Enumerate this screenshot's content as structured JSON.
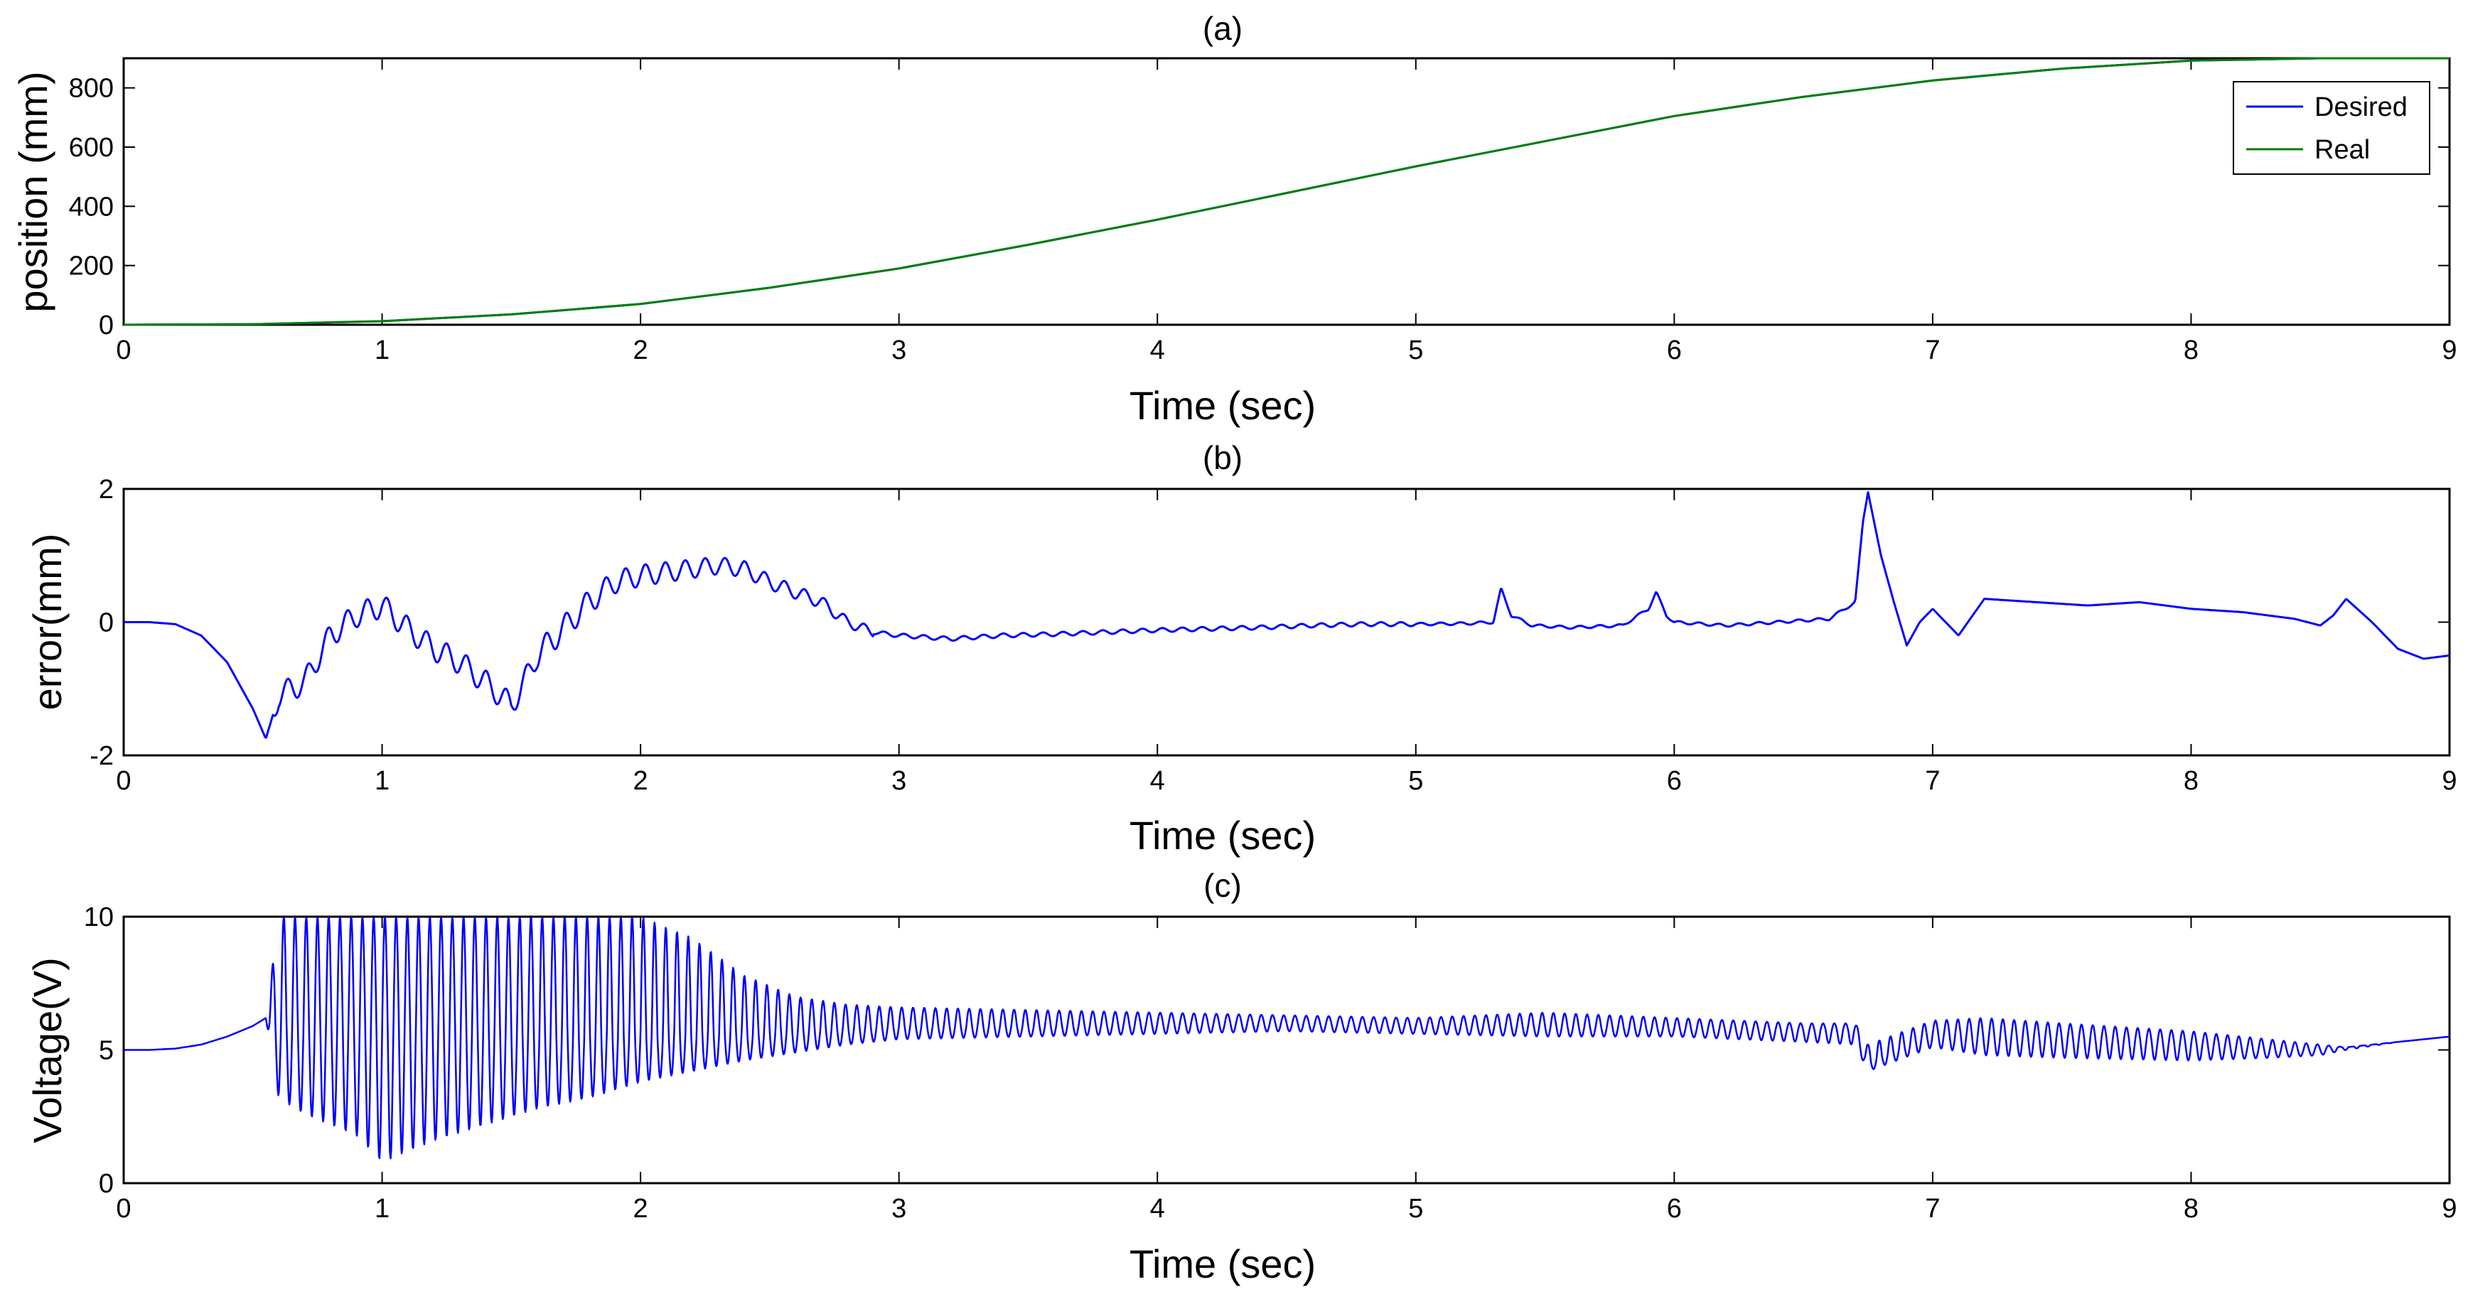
{
  "figure": {
    "line_colors": {
      "desired": "#0000ff",
      "real": "#008000"
    },
    "axis_color": "#000000",
    "background": "#ffffff"
  },
  "chart_data": [
    {
      "panel": "a",
      "type": "line",
      "title": "(a)",
      "xlabel": "Time (sec)",
      "ylabel": "position (mm)",
      "xlim": [
        0,
        9
      ],
      "ylim": [
        0,
        900
      ],
      "xticks": [
        0,
        1,
        2,
        3,
        4,
        5,
        6,
        7,
        8,
        9
      ],
      "yticks": [
        0,
        200,
        400,
        600,
        800
      ],
      "grid": false,
      "legend": {
        "placement": "top-right",
        "entries": [
          "Desired",
          "Real"
        ]
      },
      "series": [
        {
          "name": "Desired",
          "color": "#0000ff",
          "x": [
            0,
            0.5,
            1,
            1.5,
            2,
            2.5,
            3,
            3.5,
            4,
            4.5,
            5,
            5.5,
            6,
            6.5,
            7,
            7.5,
            8,
            8.5,
            9
          ],
          "y": [
            0,
            2,
            12,
            35,
            70,
            125,
            190,
            270,
            355,
            445,
            535,
            620,
            705,
            770,
            825,
            865,
            892,
            900,
            900
          ]
        },
        {
          "name": "Real",
          "color": "#008000",
          "x": [
            0,
            0.5,
            1,
            1.5,
            2,
            2.5,
            3,
            3.5,
            4,
            4.5,
            5,
            5.5,
            6,
            6.5,
            7,
            7.5,
            8,
            8.5,
            9
          ],
          "y": [
            0,
            2,
            12,
            35,
            70,
            125,
            190,
            270,
            355,
            445,
            535,
            620,
            705,
            770,
            825,
            865,
            892,
            900,
            900
          ]
        }
      ]
    },
    {
      "panel": "b",
      "type": "line",
      "title": "(b)",
      "xlabel": "Time (sec)",
      "ylabel": "error(mm)",
      "xlim": [
        0,
        9
      ],
      "ylim": [
        -2,
        2
      ],
      "xticks": [
        0,
        1,
        2,
        3,
        4,
        5,
        6,
        7,
        8,
        9
      ],
      "yticks": [
        -2,
        0,
        2
      ],
      "grid": false,
      "series": [
        {
          "name": "error",
          "color": "#0000ff",
          "x": [
            0,
            0.1,
            0.2,
            0.3,
            0.4,
            0.5,
            0.55,
            0.6,
            0.7,
            0.8,
            0.9,
            1.0,
            1.1,
            1.2,
            1.3,
            1.4,
            1.5,
            1.55,
            1.6,
            1.7,
            1.8,
            1.9,
            2.0,
            2.1,
            2.2,
            2.3,
            2.4,
            2.5,
            2.6,
            2.7,
            2.8,
            2.9,
            3.0,
            3.2,
            3.4,
            3.6,
            3.8,
            4.0,
            4.2,
            4.4,
            4.6,
            4.8,
            5.0,
            5.2,
            5.3,
            5.33,
            5.37,
            5.45,
            5.6,
            5.8,
            5.9,
            5.93,
            5.97,
            6.0,
            6.2,
            6.4,
            6.6,
            6.7,
            6.73,
            6.75,
            6.8,
            6.85,
            6.9,
            6.95,
            7.0,
            7.1,
            7.2,
            7.4,
            7.6,
            7.8,
            8.0,
            8.2,
            8.4,
            8.5,
            8.55,
            8.6,
            8.7,
            8.8,
            8.9,
            9.0
          ],
          "y": [
            0,
            0,
            -0.03,
            -0.2,
            -0.6,
            -1.3,
            -1.75,
            -1.1,
            -0.9,
            -0.2,
            0.1,
            0.25,
            -0.1,
            -0.4,
            -0.6,
            -0.9,
            -1.25,
            -0.9,
            -0.5,
            -0.1,
            0.3,
            0.6,
            0.7,
            0.75,
            0.8,
            0.85,
            0.8,
            0.6,
            0.45,
            0.3,
            0.0,
            -0.15,
            -0.2,
            -0.25,
            -0.2,
            -0.18,
            -0.15,
            -0.12,
            -0.1,
            -0.08,
            -0.05,
            -0.03,
            -0.03,
            -0.02,
            0.0,
            0.5,
            0.1,
            -0.05,
            -0.08,
            -0.05,
            0.2,
            0.45,
            0.1,
            0.0,
            -0.05,
            0.0,
            0.05,
            0.3,
            1.5,
            1.95,
            1.0,
            0.3,
            -0.35,
            0.0,
            0.2,
            -0.2,
            0.35,
            0.3,
            0.25,
            0.3,
            0.2,
            0.15,
            0.05,
            -0.05,
            0.1,
            0.35,
            0.0,
            -0.4,
            -0.55,
            -0.5
          ]
        }
      ]
    },
    {
      "panel": "c",
      "type": "line",
      "title": "(c)",
      "xlabel": "Time (sec)",
      "ylabel": "Voltage(V)",
      "xlim": [
        0,
        9
      ],
      "ylim": [
        0,
        10
      ],
      "xticks": [
        0,
        1,
        2,
        3,
        4,
        5,
        6,
        7,
        8,
        9
      ],
      "yticks": [
        0,
        5,
        10
      ],
      "grid": false,
      "series": [
        {
          "name": "voltage",
          "color": "#0000ff",
          "x": [
            0,
            0.1,
            0.2,
            0.3,
            0.4,
            0.5,
            0.55,
            0.6,
            0.7,
            0.8,
            0.9,
            1.0,
            1.2,
            1.4,
            1.6,
            1.8,
            2.0,
            2.2,
            2.4,
            2.6,
            2.8,
            3.0,
            3.5,
            4.0,
            4.5,
            5.0,
            5.5,
            6.0,
            6.5,
            6.7,
            6.75,
            7.0,
            7.2,
            7.5,
            8.0,
            8.3,
            8.5,
            8.6,
            8.8,
            9.0
          ],
          "y_center": [
            5.0,
            5.0,
            5.05,
            5.2,
            5.5,
            5.9,
            6.2,
            5.9,
            5.8,
            5.8,
            5.8,
            5.7,
            5.7,
            5.7,
            5.6,
            5.6,
            5.6,
            5.6,
            5.6,
            5.7,
            5.8,
            5.9,
            5.9,
            6.0,
            6.0,
            5.9,
            5.9,
            5.8,
            5.7,
            5.7,
            4.5,
            5.6,
            5.5,
            5.4,
            5.2,
            5.0,
            5.0,
            5.1,
            5.3,
            5.5
          ],
          "y_max": [
            5.0,
            5.0,
            5.05,
            5.2,
            5.5,
            5.9,
            6.2,
            10,
            10,
            10,
            10,
            10,
            10,
            10,
            10,
            10,
            10,
            9.2,
            7.8,
            7.0,
            6.7,
            6.6,
            6.5,
            6.4,
            6.3,
            6.2,
            6.4,
            6.2,
            6.0,
            6.0,
            5.2,
            6.1,
            6.2,
            6.0,
            5.7,
            5.4,
            5.2,
            5.1,
            5.3,
            5.5
          ],
          "y_min": [
            5.0,
            5.0,
            5.05,
            5.2,
            5.5,
            5.9,
            6.2,
            3.2,
            2.6,
            2.2,
            1.8,
            0.8,
            1.6,
            2.2,
            2.8,
            3.2,
            3.8,
            4.2,
            4.6,
            4.9,
            5.2,
            5.4,
            5.5,
            5.6,
            5.7,
            5.6,
            5.5,
            5.5,
            5.3,
            5.2,
            4.2,
            5.1,
            4.8,
            4.7,
            4.6,
            4.7,
            4.8,
            5.0,
            5.3,
            5.5
          ]
        }
      ]
    }
  ]
}
